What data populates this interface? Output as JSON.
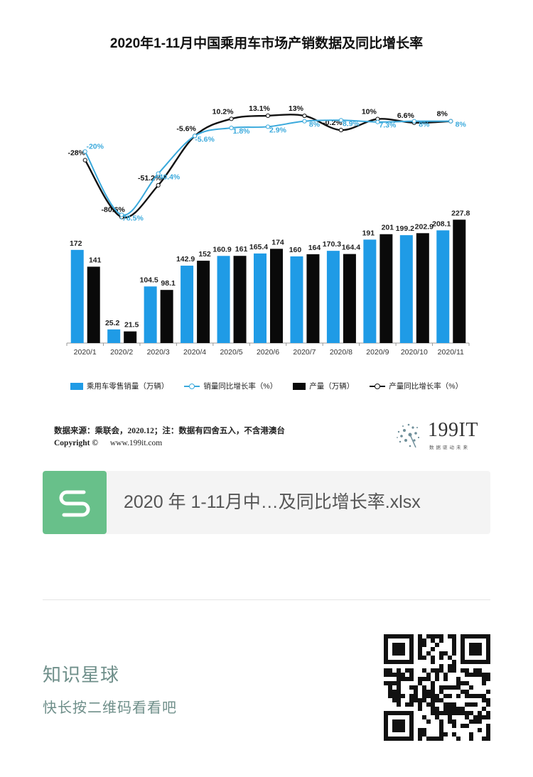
{
  "chart_data": {
    "type": "bar",
    "title": "2020年1-11月中国乘用车市场产销数据及同比增长率",
    "categories": [
      "2020/1",
      "2020/2",
      "2020/3",
      "2020/4",
      "2020/5",
      "2020/6",
      "2020/7",
      "2020/8",
      "2020/9",
      "2020/10",
      "2020/11"
    ],
    "series": [
      {
        "name": "乘用车零售销量（万辆）",
        "kind": "bar",
        "color": "#1f9be6",
        "values": [
          172,
          25.2,
          104.5,
          142.9,
          160.9,
          165.4,
          160,
          170.3,
          191,
          199.2,
          208.1
        ],
        "labels": [
          "172",
          "25.2",
          "104.5",
          "142.9",
          "160.9",
          "165.4",
          "160",
          "170.3",
          "191",
          "199.2",
          "208.1"
        ]
      },
      {
        "name": "产量（万辆）",
        "kind": "bar",
        "color": "#0a0a0a",
        "values": [
          141,
          21.5,
          98.1,
          152,
          161,
          174,
          164,
          164.4,
          201,
          202.9,
          227.8
        ],
        "labels": [
          "141",
          "21.5",
          "98.1",
          "152",
          "161",
          "174",
          "164",
          "164.4",
          "201",
          "202.9",
          "227.8"
        ]
      },
      {
        "name": "销量同比增长率（%）",
        "kind": "line",
        "color": "#3aa9dc",
        "values": [
          -20,
          -78.5,
          -40.4,
          -5.6,
          1.8,
          2.9,
          8,
          8.9,
          7.3,
          8,
          8
        ],
        "labels": [
          "-20%",
          "-78.5%",
          "-40.4%",
          "-5.6%",
          "1.8%",
          "2.9%",
          "8%",
          "8.9%",
          "7.3%",
          "8%",
          "8%"
        ]
      },
      {
        "name": "产量同比增长率（%）",
        "kind": "line",
        "color": "#111111",
        "values": [
          -28,
          -80.6,
          -51.2,
          -5.6,
          10.2,
          13.1,
          13,
          -0.2,
          10,
          6.6,
          8
        ],
        "labels": [
          "-28%",
          "-80.6%",
          "-51.2%",
          "-5.6%",
          "10.2%",
          "13.1%",
          "13%",
          "-0.2%",
          "10%",
          "6.6%",
          "8%"
        ]
      }
    ],
    "bar_ylim": [
      0,
      240
    ],
    "line_ylim": [
      -90,
      15
    ],
    "legend_position": "bottom",
    "grid": false
  },
  "source": {
    "label": "数据来源：乘联会，2020.12；注：数据有四舍五入，不含港澳台",
    "copyright": "Copyright ©",
    "website": "www.199it.com"
  },
  "brand": {
    "name": "199IT",
    "tagline": "数据驱动未来"
  },
  "file_card": {
    "icon": "spreadsheet-s-icon",
    "file_name": "2020 年 1-11月中…及同比增长率.xlsx"
  },
  "footer": {
    "title": "知识星球",
    "subtitle": "快长按二维码看看吧"
  }
}
